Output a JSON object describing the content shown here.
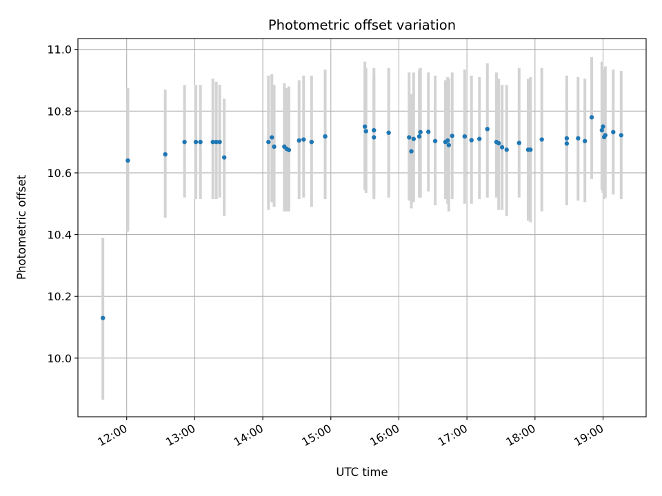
{
  "chart_data": {
    "type": "scatter",
    "title": "Photometric offset variation",
    "xlabel": "UTC time",
    "ylabel": "Photometric offset",
    "xlim": [
      "11:17",
      "19:38"
    ],
    "ylim": [
      9.81,
      11.035
    ],
    "grid": true,
    "xticks": [
      "12:00",
      "13:00",
      "14:00",
      "15:00",
      "16:00",
      "17:00",
      "18:00",
      "19:00"
    ],
    "yticks": [
      "10.0",
      "10.2",
      "10.4",
      "10.6",
      "10.8",
      "11.0"
    ],
    "colors": {
      "points": "#1f77b4",
      "error_bars": "#d3d3d3",
      "grid": "#b0b0b0"
    },
    "series": [
      {
        "x": [
          "11:39",
          "12:01",
          "12:34",
          "12:51",
          "13:01",
          "13:16",
          "13:19",
          "13:22",
          "13:26",
          "13:05",
          "14:05",
          "14:08",
          "14:10",
          "14:19",
          "14:21",
          "14:23",
          "14:32",
          "14:36",
          "14:43",
          "14:55",
          "15:30",
          "15:31",
          "15:38",
          "15:38",
          "15:51",
          "16:09",
          "16:11",
          "16:13",
          "16:18",
          "16:19",
          "16:26",
          "16:32",
          "16:41",
          "16:43",
          "16:44",
          "16:47",
          "16:58",
          "17:04",
          "17:11",
          "17:18",
          "17:26",
          "17:28",
          "17:31",
          "17:35",
          "17:46",
          "17:54",
          "17:56",
          "18:06",
          "18:28",
          "18:28",
          "18:38",
          "18:44",
          "18:50",
          "18:59",
          "19:00",
          "19:01",
          "19:02",
          "19:09",
          "19:16"
        ],
        "y": [
          10.13,
          10.64,
          10.66,
          10.7,
          10.7,
          10.7,
          10.7,
          10.7,
          10.65,
          10.7,
          10.7,
          10.715,
          10.685,
          10.685,
          10.678,
          10.674,
          10.705,
          10.708,
          10.7,
          10.718,
          10.75,
          10.735,
          10.738,
          10.715,
          10.73,
          10.715,
          10.67,
          10.71,
          10.718,
          10.732,
          10.733,
          10.703,
          10.7,
          10.705,
          10.69,
          10.72,
          10.718,
          10.706,
          10.71,
          10.742,
          10.7,
          10.696,
          10.683,
          10.675,
          10.697,
          10.675,
          10.675,
          10.708,
          10.712,
          10.695,
          10.712,
          10.703,
          10.78,
          10.738,
          10.75,
          10.716,
          10.722,
          10.732,
          10.722
        ],
        "yerr_low": [
          9.865,
          10.41,
          10.455,
          10.52,
          10.515,
          10.515,
          10.515,
          10.52,
          10.46,
          10.515,
          10.48,
          10.505,
          10.49,
          10.475,
          10.475,
          10.475,
          10.515,
          10.52,
          10.49,
          10.515,
          10.545,
          10.535,
          10.525,
          10.515,
          10.52,
          10.51,
          10.485,
          10.505,
          10.52,
          10.52,
          10.54,
          10.495,
          10.515,
          10.5,
          10.475,
          10.515,
          10.5,
          10.5,
          10.515,
          10.52,
          10.52,
          10.48,
          10.48,
          10.46,
          10.52,
          10.445,
          10.44,
          10.475,
          10.51,
          10.495,
          10.51,
          10.505,
          10.58,
          10.545,
          10.535,
          10.515,
          10.52,
          10.53,
          10.515
        ],
        "yerr_high": [
          10.39,
          10.875,
          10.87,
          10.885,
          10.885,
          10.905,
          10.895,
          10.885,
          10.84,
          10.885,
          10.915,
          10.92,
          10.885,
          10.89,
          10.875,
          10.88,
          10.9,
          10.915,
          10.915,
          10.935,
          10.96,
          10.94,
          10.94,
          10.92,
          10.94,
          10.925,
          10.855,
          10.925,
          10.935,
          10.94,
          10.925,
          10.915,
          10.9,
          10.91,
          10.905,
          10.925,
          10.935,
          10.915,
          10.91,
          10.955,
          10.925,
          10.905,
          10.885,
          10.885,
          10.94,
          10.905,
          10.91,
          10.94,
          10.915,
          10.885,
          10.91,
          10.905,
          10.975,
          10.96,
          10.935,
          10.92,
          10.945,
          10.935,
          10.93
        ]
      }
    ]
  }
}
